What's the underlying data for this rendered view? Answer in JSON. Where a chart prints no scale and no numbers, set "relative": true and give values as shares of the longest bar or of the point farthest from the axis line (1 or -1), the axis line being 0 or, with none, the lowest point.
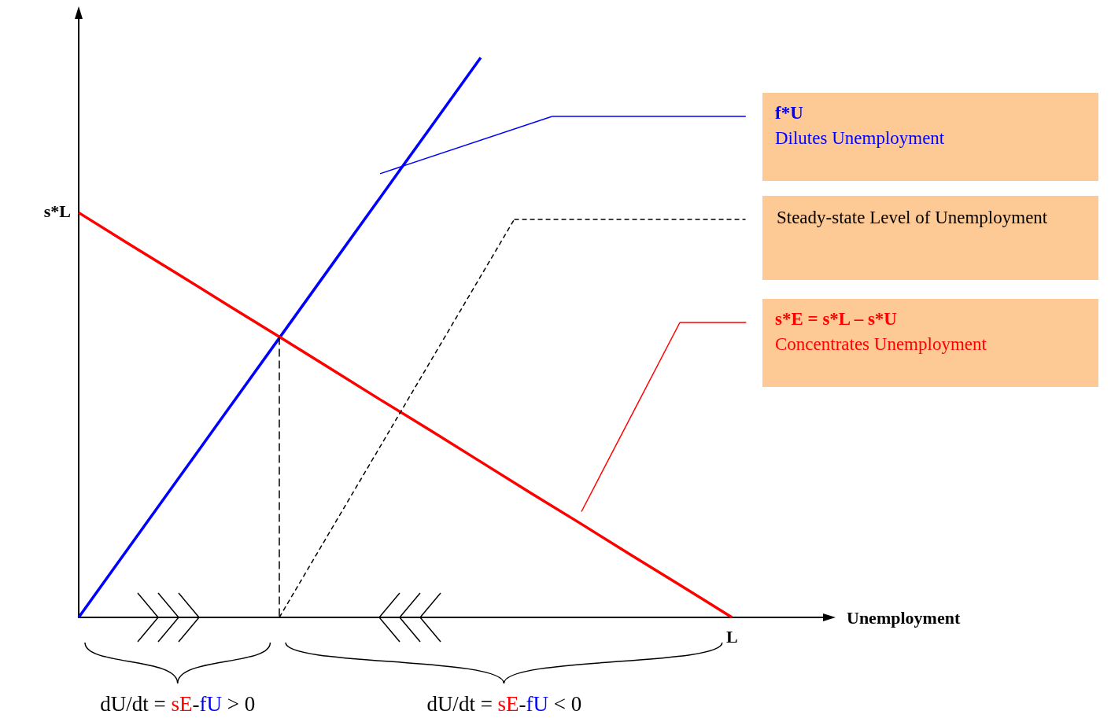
{
  "chart_data": {
    "type": "line",
    "xlabel": "Unemployment",
    "relative": true,
    "categories": [
      null,
      null,
      null,
      null,
      null,
      null,
      null,
      null,
      null,
      null,
      null,
      null,
      null,
      null,
      null,
      null
    ],
    "series": [
      {
        "color": "#0000ff",
        "values": [
          0,
          0.125,
          0.25,
          0.375,
          0.5,
          0.625,
          0.75,
          0.875,
          1,
          null,
          null,
          null,
          null,
          null,
          null,
          null
        ]
      },
      {
        "color": "#ff0000",
        "values": [
          0.723,
          0.667,
          0.612,
          0.556,
          0.501,
          0.445,
          0.389,
          0.334,
          0.278,
          0.222,
          0.167,
          0.111,
          0.056,
          0,
          null,
          null
        ]
      }
    ],
    "annotations": [
      "f*U\nDilutes Unemployment",
      "Steady-state Level of Unemployment",
      "s*E = s*L – s*U\nConcentrates Unemployment",
      "s*L",
      "L",
      "dU/dt = sE-fU > 0",
      "dU/dt = sE-fU < 0"
    ],
    "grid": false,
    "marker": "none",
    "line_style": "solid"
  }
}
